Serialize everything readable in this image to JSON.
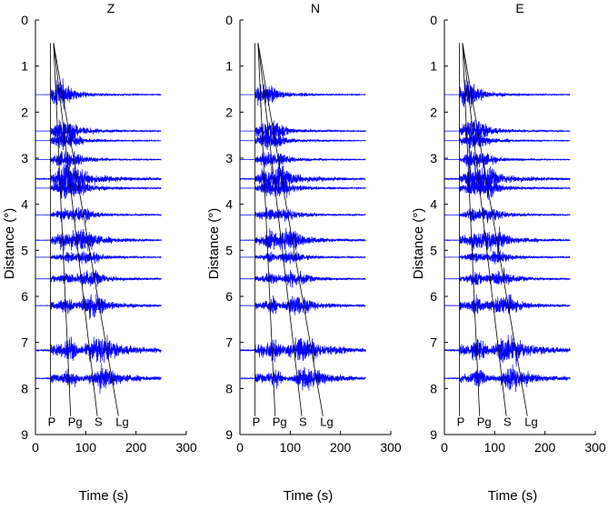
{
  "chart_data": [
    {
      "type": "line",
      "title": "Z",
      "xlabel": "Time (s)",
      "ylabel": "Distance (°)",
      "xlim": [
        0,
        300
      ],
      "ylim": [
        0,
        9
      ],
      "y_inverted": true,
      "xticks": [
        "0",
        "100",
        "200",
        "300"
      ],
      "yticks": [
        "0",
        "1",
        "2",
        "3",
        "4",
        "5",
        "6",
        "7",
        "8",
        "9"
      ],
      "grid": false,
      "trace_color": "#0000ff",
      "trace_distances": [
        1.62,
        2.41,
        2.62,
        3.03,
        3.45,
        3.65,
        4.23,
        4.78,
        5.15,
        5.62,
        6.2,
        7.17,
        7.78
      ],
      "trace_time_range": [
        0,
        250
      ],
      "phases": [
        {
          "label": "P",
          "start": [
            30,
            0.5
          ],
          "end": [
            30,
            8.6
          ]
        },
        {
          "label": "Pg",
          "start": [
            36,
            0.5
          ],
          "end": [
            70,
            8.6
          ]
        },
        {
          "label": "S",
          "start": [
            36,
            0.5
          ],
          "end": [
            123,
            8.6
          ]
        },
        {
          "label": "Lg",
          "start": [
            36,
            0.5
          ],
          "end": [
            165,
            8.6
          ]
        }
      ]
    },
    {
      "type": "line",
      "title": "N",
      "xlabel": "Time (s)",
      "ylabel": "Distance (°)",
      "xlim": [
        0,
        300
      ],
      "ylim": [
        0,
        9
      ],
      "y_inverted": true,
      "xticks": [
        "0",
        "100",
        "200",
        "300"
      ],
      "yticks": [
        "0",
        "1",
        "2",
        "3",
        "4",
        "5",
        "6",
        "7",
        "8",
        "9"
      ],
      "grid": false,
      "trace_color": "#0000ff",
      "trace_distances": [
        1.62,
        2.41,
        2.62,
        3.03,
        3.45,
        3.65,
        4.23,
        4.78,
        5.15,
        5.62,
        6.2,
        7.17,
        7.78
      ],
      "trace_time_range": [
        0,
        250
      ],
      "phases": [
        {
          "label": "P",
          "start": [
            30,
            0.5
          ],
          "end": [
            30,
            8.6
          ]
        },
        {
          "label": "Pg",
          "start": [
            36,
            0.5
          ],
          "end": [
            70,
            8.6
          ]
        },
        {
          "label": "S",
          "start": [
            36,
            0.5
          ],
          "end": [
            123,
            8.6
          ]
        },
        {
          "label": "Lg",
          "start": [
            36,
            0.5
          ],
          "end": [
            165,
            8.6
          ]
        }
      ]
    },
    {
      "type": "line",
      "title": "E",
      "xlabel": "Time (s)",
      "ylabel": "Distance (°)",
      "xlim": [
        0,
        300
      ],
      "ylim": [
        0,
        9
      ],
      "y_inverted": true,
      "xticks": [
        "0",
        "100",
        "200",
        "300"
      ],
      "yticks": [
        "0",
        "1",
        "2",
        "3",
        "4",
        "5",
        "6",
        "7",
        "8",
        "9"
      ],
      "grid": false,
      "trace_color": "#0000ff",
      "trace_distances": [
        1.62,
        2.41,
        2.62,
        3.03,
        3.45,
        3.65,
        4.23,
        4.78,
        5.15,
        5.62,
        6.2,
        7.17,
        7.78
      ],
      "trace_time_range": [
        0,
        250
      ],
      "phases": [
        {
          "label": "P",
          "start": [
            30,
            0.5
          ],
          "end": [
            30,
            8.6
          ]
        },
        {
          "label": "Pg",
          "start": [
            36,
            0.5
          ],
          "end": [
            70,
            8.6
          ]
        },
        {
          "label": "S",
          "start": [
            36,
            0.5
          ],
          "end": [
            123,
            8.6
          ]
        },
        {
          "label": "Lg",
          "start": [
            36,
            0.5
          ],
          "end": [
            165,
            8.6
          ]
        }
      ]
    }
  ]
}
